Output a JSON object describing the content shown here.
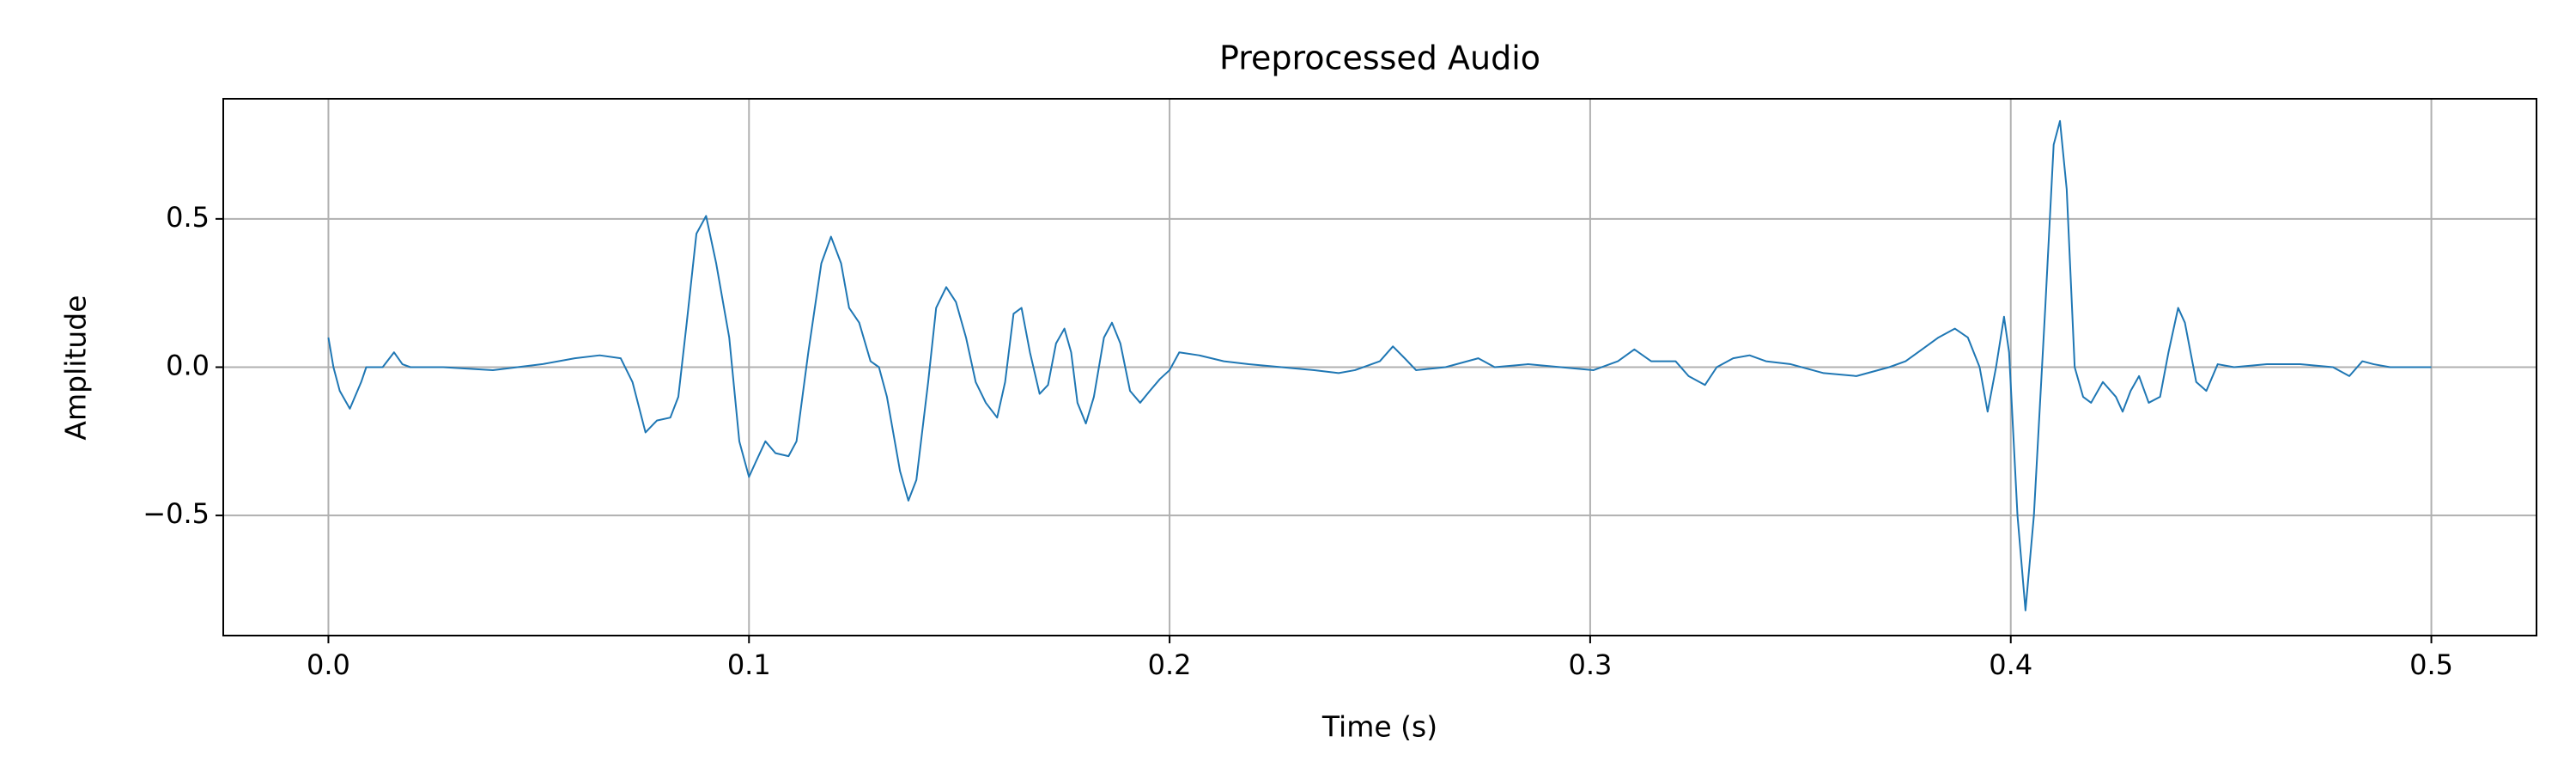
{
  "chart_data": {
    "type": "line",
    "title": "Preprocessed Audio",
    "x_label": "Time (s)",
    "y_label": "Amplitude",
    "color": "#1f77b4",
    "grid": true,
    "xlim": [
      -0.025,
      0.525
    ],
    "ylim": [
      -0.905,
      0.905
    ],
    "xticks": [
      {
        "value": 0,
        "label": "0.0"
      },
      0.1,
      0.2,
      0.3,
      0.4,
      0.5
    ],
    "yticks": [
      {
        "value": -0.5,
        "label": "−0.5"
      },
      {
        "value": 0,
        "label": "0.0"
      },
      0.5
    ],
    "x": [
      0,
      0.0012,
      0.0027,
      0.0051,
      0.0078,
      0.009,
      0.0129,
      0.0156,
      0.0176,
      0.0195,
      0.0273,
      0.0391,
      0.0508,
      0.0586,
      0.0645,
      0.0695,
      0.0723,
      0.0754,
      0.0781,
      0.0813,
      0.0832,
      0.0852,
      0.0875,
      0.0898,
      0.0922,
      0.0953,
      0.0977,
      0.1,
      0.1016,
      0.1039,
      0.1063,
      0.1094,
      0.1113,
      0.1141,
      0.1172,
      0.1195,
      0.1219,
      0.1238,
      0.1262,
      0.1289,
      0.1309,
      0.1328,
      0.1359,
      0.1379,
      0.1398,
      0.1426,
      0.1445,
      0.1469,
      0.1492,
      0.1516,
      0.1539,
      0.1563,
      0.159,
      0.1609,
      0.1629,
      0.1648,
      0.1668,
      0.1691,
      0.1711,
      0.173,
      0.175,
      0.1766,
      0.1781,
      0.1801,
      0.182,
      0.1844,
      0.1863,
      0.1883,
      0.1906,
      0.193,
      0.1953,
      0.1977,
      0.2,
      0.2023,
      0.207,
      0.2129,
      0.2188,
      0.2266,
      0.2344,
      0.2402,
      0.2441,
      0.25,
      0.2531,
      0.2559,
      0.2586,
      0.2656,
      0.2734,
      0.2773,
      0.2852,
      0.293,
      0.3008,
      0.3066,
      0.3105,
      0.3145,
      0.3203,
      0.3234,
      0.3273,
      0.3301,
      0.334,
      0.3379,
      0.3418,
      0.3477,
      0.3555,
      0.3633,
      0.3711,
      0.375,
      0.3789,
      0.3828,
      0.3867,
      0.3898,
      0.3926,
      0.3945,
      0.3965,
      0.3984,
      0.3996,
      0.4016,
      0.4035,
      0.4055,
      0.4082,
      0.4102,
      0.4117,
      0.4133,
      0.4152,
      0.4172,
      0.4191,
      0.4219,
      0.425,
      0.4266,
      0.4285,
      0.4305,
      0.4328,
      0.4355,
      0.4375,
      0.4398,
      0.4414,
      0.4441,
      0.4465,
      0.4492,
      0.4531,
      0.4609,
      0.4688,
      0.4766,
      0.4805,
      0.4836,
      0.4863,
      0.4902,
      0.5
    ],
    "values": [
      0.1,
      0.0,
      -0.08,
      -0.14,
      -0.05,
      0.0,
      0.0,
      0.05,
      0.01,
      0.0,
      0.0,
      -0.01,
      0.01,
      0.03,
      0.04,
      0.03,
      -0.05,
      -0.22,
      -0.18,
      -0.17,
      -0.1,
      0.15,
      0.45,
      0.51,
      0.35,
      0.1,
      -0.25,
      -0.37,
      -0.32,
      -0.25,
      -0.29,
      -0.3,
      -0.25,
      0.05,
      0.35,
      0.44,
      0.35,
      0.2,
      0.15,
      0.02,
      0.0,
      -0.1,
      -0.35,
      -0.45,
      -0.38,
      -0.05,
      0.2,
      0.27,
      0.22,
      0.1,
      -0.05,
      -0.12,
      -0.17,
      -0.05,
      0.18,
      0.2,
      0.05,
      -0.09,
      -0.06,
      0.08,
      0.13,
      0.05,
      -0.12,
      -0.19,
      -0.1,
      0.1,
      0.15,
      0.08,
      -0.08,
      -0.12,
      -0.08,
      -0.04,
      -0.01,
      0.05,
      0.04,
      0.02,
      0.01,
      0.0,
      -0.01,
      -0.02,
      -0.01,
      0.02,
      0.07,
      0.03,
      -0.01,
      0.0,
      0.03,
      0.0,
      0.01,
      0.0,
      -0.01,
      0.02,
      0.06,
      0.02,
      0.02,
      -0.03,
      -0.06,
      0.0,
      0.03,
      0.04,
      0.02,
      0.01,
      -0.02,
      -0.03,
      0.0,
      0.02,
      0.06,
      0.1,
      0.13,
      0.1,
      0.0,
      -0.15,
      0.0,
      0.17,
      0.05,
      -0.5,
      -0.82,
      -0.5,
      0.2,
      0.75,
      0.83,
      0.6,
      0.0,
      -0.1,
      -0.12,
      -0.05,
      -0.1,
      -0.15,
      -0.08,
      -0.03,
      -0.12,
      -0.1,
      0.05,
      0.2,
      0.15,
      -0.05,
      -0.08,
      0.01,
      0.0,
      0.01,
      0.01,
      0.0,
      -0.03,
      0.02,
      0.01,
      0.0,
      0.0
    ]
  }
}
